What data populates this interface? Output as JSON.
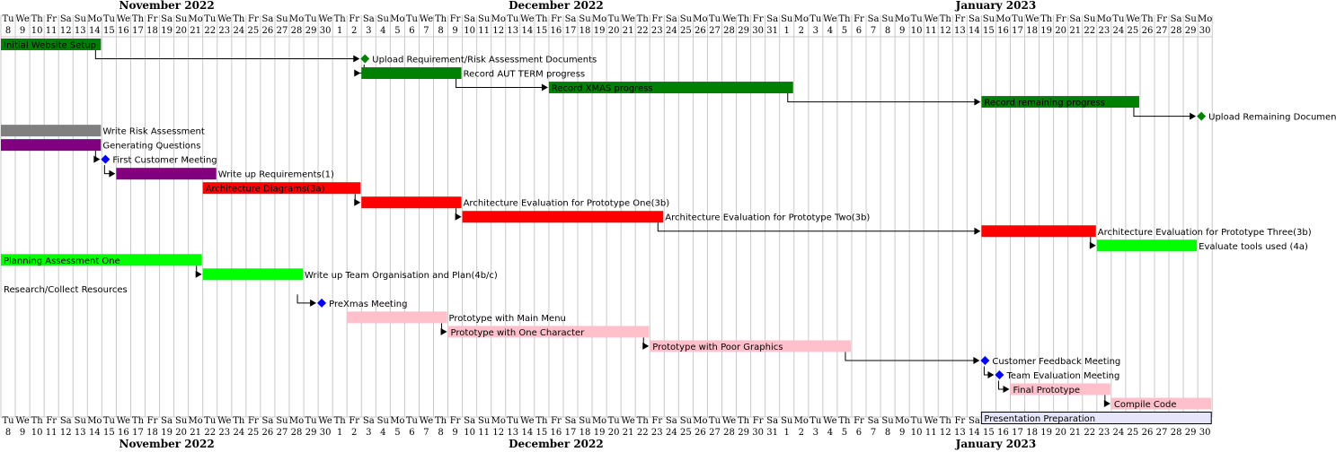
{
  "chart_data": {
    "type": "gantt",
    "start_date": "2022-11-08",
    "end_date": "2023-01-30",
    "months": [
      {
        "label": "November 2022",
        "start": "2022-11-08",
        "end": "2022-11-30"
      },
      {
        "label": "December 2022",
        "start": "2022-12-01",
        "end": "2022-12-31"
      },
      {
        "label": "January 2023",
        "start": "2023-01-01",
        "end": "2023-01-30"
      }
    ],
    "weekday_abbrev": [
      "Su",
      "Mo",
      "Tu",
      "We",
      "Th",
      "Fr",
      "Sa"
    ],
    "weekend_shading": false,
    "colors": {
      "green": "#008000",
      "gray": "#808080",
      "purple": "#800080",
      "red": "#ff0000",
      "lime": "#00ff00",
      "pink": "#ffc0cb",
      "lavender": "#e6e6fa",
      "milestone_green": "#008000",
      "milestone_blue": "#0000ff"
    },
    "tasks": [
      {
        "id": "t1",
        "name": "Initial Website Setup",
        "start": "2022-11-08",
        "end": "2022-11-14",
        "color": "green",
        "row": 0,
        "label_inside": true
      },
      {
        "id": "t2",
        "name": "Upload Requirement/Risk Assessment Documents",
        "milestone": "2022-12-03",
        "color": "milestone_green",
        "row": 1,
        "after": "t1"
      },
      {
        "id": "t3",
        "name": "Record AUT TERM progress",
        "start": "2022-12-03",
        "end": "2022-12-09",
        "color": "green",
        "row": 2,
        "after": "t2"
      },
      {
        "id": "t4",
        "name": "Record XMAS progress",
        "start": "2022-12-16",
        "end": "2023-01-01",
        "color": "green",
        "row": 3,
        "label_inside": true,
        "after": "t3"
      },
      {
        "id": "t5",
        "name": "Record remaining progress",
        "start": "2023-01-15",
        "end": "2023-01-25",
        "color": "green",
        "row": 4,
        "label_inside": true,
        "after": "t4"
      },
      {
        "id": "t6",
        "name": "Upload Remaining Documents",
        "milestone": "2023-01-30",
        "color": "milestone_green",
        "row": 5,
        "after": "t5"
      },
      {
        "id": "t7",
        "name": "Write Risk Assessment",
        "start": "2022-11-08",
        "end": "2022-11-14",
        "color": "gray",
        "row": 6
      },
      {
        "id": "t8",
        "name": "Generating Questions",
        "start": "2022-11-08",
        "end": "2022-11-14",
        "color": "purple",
        "row": 7
      },
      {
        "id": "t9",
        "name": "First Customer Meeting",
        "milestone": "2022-11-15",
        "color": "milestone_blue",
        "row": 8,
        "after": "t8"
      },
      {
        "id": "t10",
        "name": "Write up Requirements(1)",
        "start": "2022-11-16",
        "end": "2022-11-22",
        "color": "purple",
        "row": 9,
        "after": "t9"
      },
      {
        "id": "t11",
        "name": "Architecture Diagrams(3a)",
        "start": "2022-11-22",
        "end": "2022-12-02",
        "color": "red",
        "row": 10,
        "label_inside": true
      },
      {
        "id": "t12",
        "name": "Architecture Evaluation for Prototype One(3b)",
        "start": "2022-12-03",
        "end": "2022-12-09",
        "color": "red",
        "row": 11,
        "after": "t11"
      },
      {
        "id": "t13",
        "name": "Architecture Evaluation for Prototype Two(3b)",
        "start": "2022-12-10",
        "end": "2022-12-23",
        "color": "red",
        "row": 12,
        "after": "t12"
      },
      {
        "id": "t14",
        "name": "Architecture Evaluation for Prototype Three(3b)",
        "start": "2023-01-15",
        "end": "2023-01-22",
        "color": "red",
        "row": 13,
        "after": "t13"
      },
      {
        "id": "t15",
        "name": "Evaluate tools used (4a)",
        "start": "2023-01-23",
        "end": "2023-01-29",
        "color": "lime",
        "row": 14,
        "after": "t14"
      },
      {
        "id": "t16",
        "name": "Planning Assessment One",
        "start": "2022-11-08",
        "end": "2022-11-21",
        "color": "lime",
        "row": 15,
        "label_inside": true
      },
      {
        "id": "t17",
        "name": "Write up Team Organisation and Plan(4b/c)",
        "start": "2022-11-22",
        "end": "2022-11-28",
        "color": "lime",
        "row": 16,
        "after": "t16"
      },
      {
        "id": "t18",
        "name": "Research/Collect Resources",
        "start": "2022-11-08",
        "end": "2022-11-28",
        "color": "none",
        "row": 17,
        "label_inside": true
      },
      {
        "id": "t19",
        "name": "PreXmas Meeting",
        "milestone": "2022-11-30",
        "color": "milestone_blue",
        "row": 18,
        "after": "t18"
      },
      {
        "id": "t20",
        "name": "Prototype with Main Menu",
        "start": "2022-12-02",
        "end": "2022-12-08",
        "color": "pink",
        "row": 19
      },
      {
        "id": "t21",
        "name": "Prototype with One Character",
        "start": "2022-12-09",
        "end": "2022-12-22",
        "color": "pink",
        "row": 20,
        "label_inside": true,
        "after": "t20"
      },
      {
        "id": "t22",
        "name": "Prototype with Poor Graphics",
        "start": "2022-12-23",
        "end": "2023-01-05",
        "color": "pink",
        "row": 21,
        "label_inside": true,
        "after": "t21"
      },
      {
        "id": "t23",
        "name": "Customer Feedback Meeting",
        "milestone": "2023-01-15",
        "color": "milestone_blue",
        "row": 22,
        "after": "t22"
      },
      {
        "id": "t24",
        "name": "Team Evaluation Meeting",
        "milestone": "2023-01-16",
        "color": "milestone_blue",
        "row": 23,
        "after": "t23"
      },
      {
        "id": "t25",
        "name": "Final Prototype",
        "start": "2023-01-17",
        "end": "2023-01-23",
        "color": "pink",
        "row": 24,
        "label_inside": true,
        "after": "t24"
      },
      {
        "id": "t26",
        "name": "Compile Code",
        "start": "2023-01-24",
        "end": "2023-01-30",
        "color": "pink",
        "row": 25,
        "label_inside": true,
        "after": "t25"
      },
      {
        "id": "t27",
        "name": "Presentation Preparation",
        "start": "2023-01-15",
        "end": "2023-01-30",
        "color": "lavender",
        "row": 26,
        "label_inside": true
      }
    ]
  }
}
